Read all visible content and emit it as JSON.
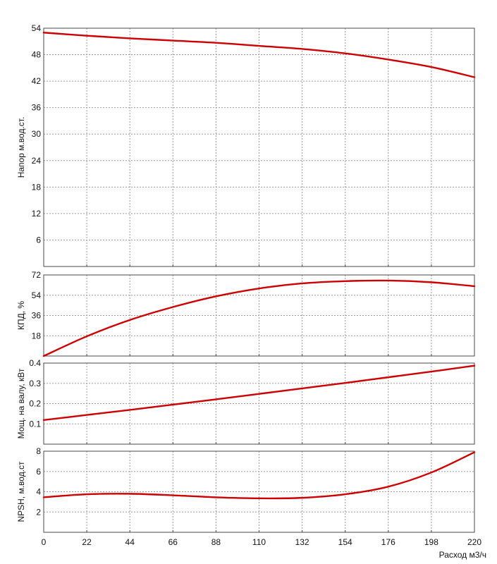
{
  "chart_data": [
    {
      "type": "line",
      "id": "head",
      "ylabel": "Напор м.вод.ст.",
      "ylim": [
        0,
        54
      ],
      "yticks": [
        6,
        12,
        18,
        24,
        30,
        36,
        42,
        48,
        54
      ],
      "grid": true,
      "x": [
        0,
        22,
        44,
        66,
        88,
        110,
        132,
        154,
        176,
        198,
        220
      ],
      "series": [
        {
          "values": [
            53.0,
            52.3,
            51.7,
            51.2,
            50.7,
            50.0,
            49.3,
            48.3,
            46.9,
            45.2,
            42.9
          ]
        }
      ]
    },
    {
      "type": "line",
      "id": "efficiency",
      "ylabel": "КПД, %",
      "ylim": [
        0,
        72
      ],
      "yticks": [
        18,
        36,
        54,
        72
      ],
      "grid": true,
      "x": [
        0,
        22,
        44,
        66,
        88,
        110,
        132,
        154,
        176,
        198,
        220
      ],
      "series": [
        {
          "values": [
            0,
            17.5,
            32,
            43.5,
            53,
            60,
            64.5,
            66.5,
            67,
            65.5,
            62
          ]
        }
      ]
    },
    {
      "type": "line",
      "id": "power",
      "ylabel": "Мощ. на валу, кВт",
      "ylim": [
        0,
        0.4
      ],
      "yticks": [
        0.1,
        0.2,
        0.3,
        0.4
      ],
      "ytick_labels": [
        "0.1",
        "0.2",
        "0.3",
        "0.4"
      ],
      "grid": true,
      "x": [
        0,
        22,
        44,
        66,
        88,
        110,
        132,
        154,
        176,
        198,
        220
      ],
      "series": [
        {
          "values": [
            0.119,
            0.144,
            0.169,
            0.195,
            0.221,
            0.248,
            0.275,
            0.302,
            0.33,
            0.358,
            0.387
          ]
        }
      ]
    },
    {
      "type": "line",
      "id": "npsh",
      "ylabel": "NPSH, м.вод.ст",
      "ylim": [
        0,
        8
      ],
      "yticks": [
        2,
        4,
        6,
        8
      ],
      "grid": true,
      "x": [
        0,
        22,
        44,
        66,
        88,
        110,
        132,
        154,
        176,
        198,
        220
      ],
      "series": [
        {
          "values": [
            3.45,
            3.75,
            3.8,
            3.65,
            3.45,
            3.35,
            3.4,
            3.75,
            4.5,
            5.9,
            7.9
          ]
        }
      ]
    }
  ],
  "x_axis": {
    "label": "Расход м3/ч",
    "xlim": [
      0,
      220
    ],
    "ticks": [
      0,
      22,
      44,
      66,
      88,
      110,
      132,
      154,
      176,
      198,
      220
    ]
  },
  "colors": {
    "curve": "#cc0000",
    "grid": "#9a9a9a",
    "frame": "#4a4a4a"
  }
}
